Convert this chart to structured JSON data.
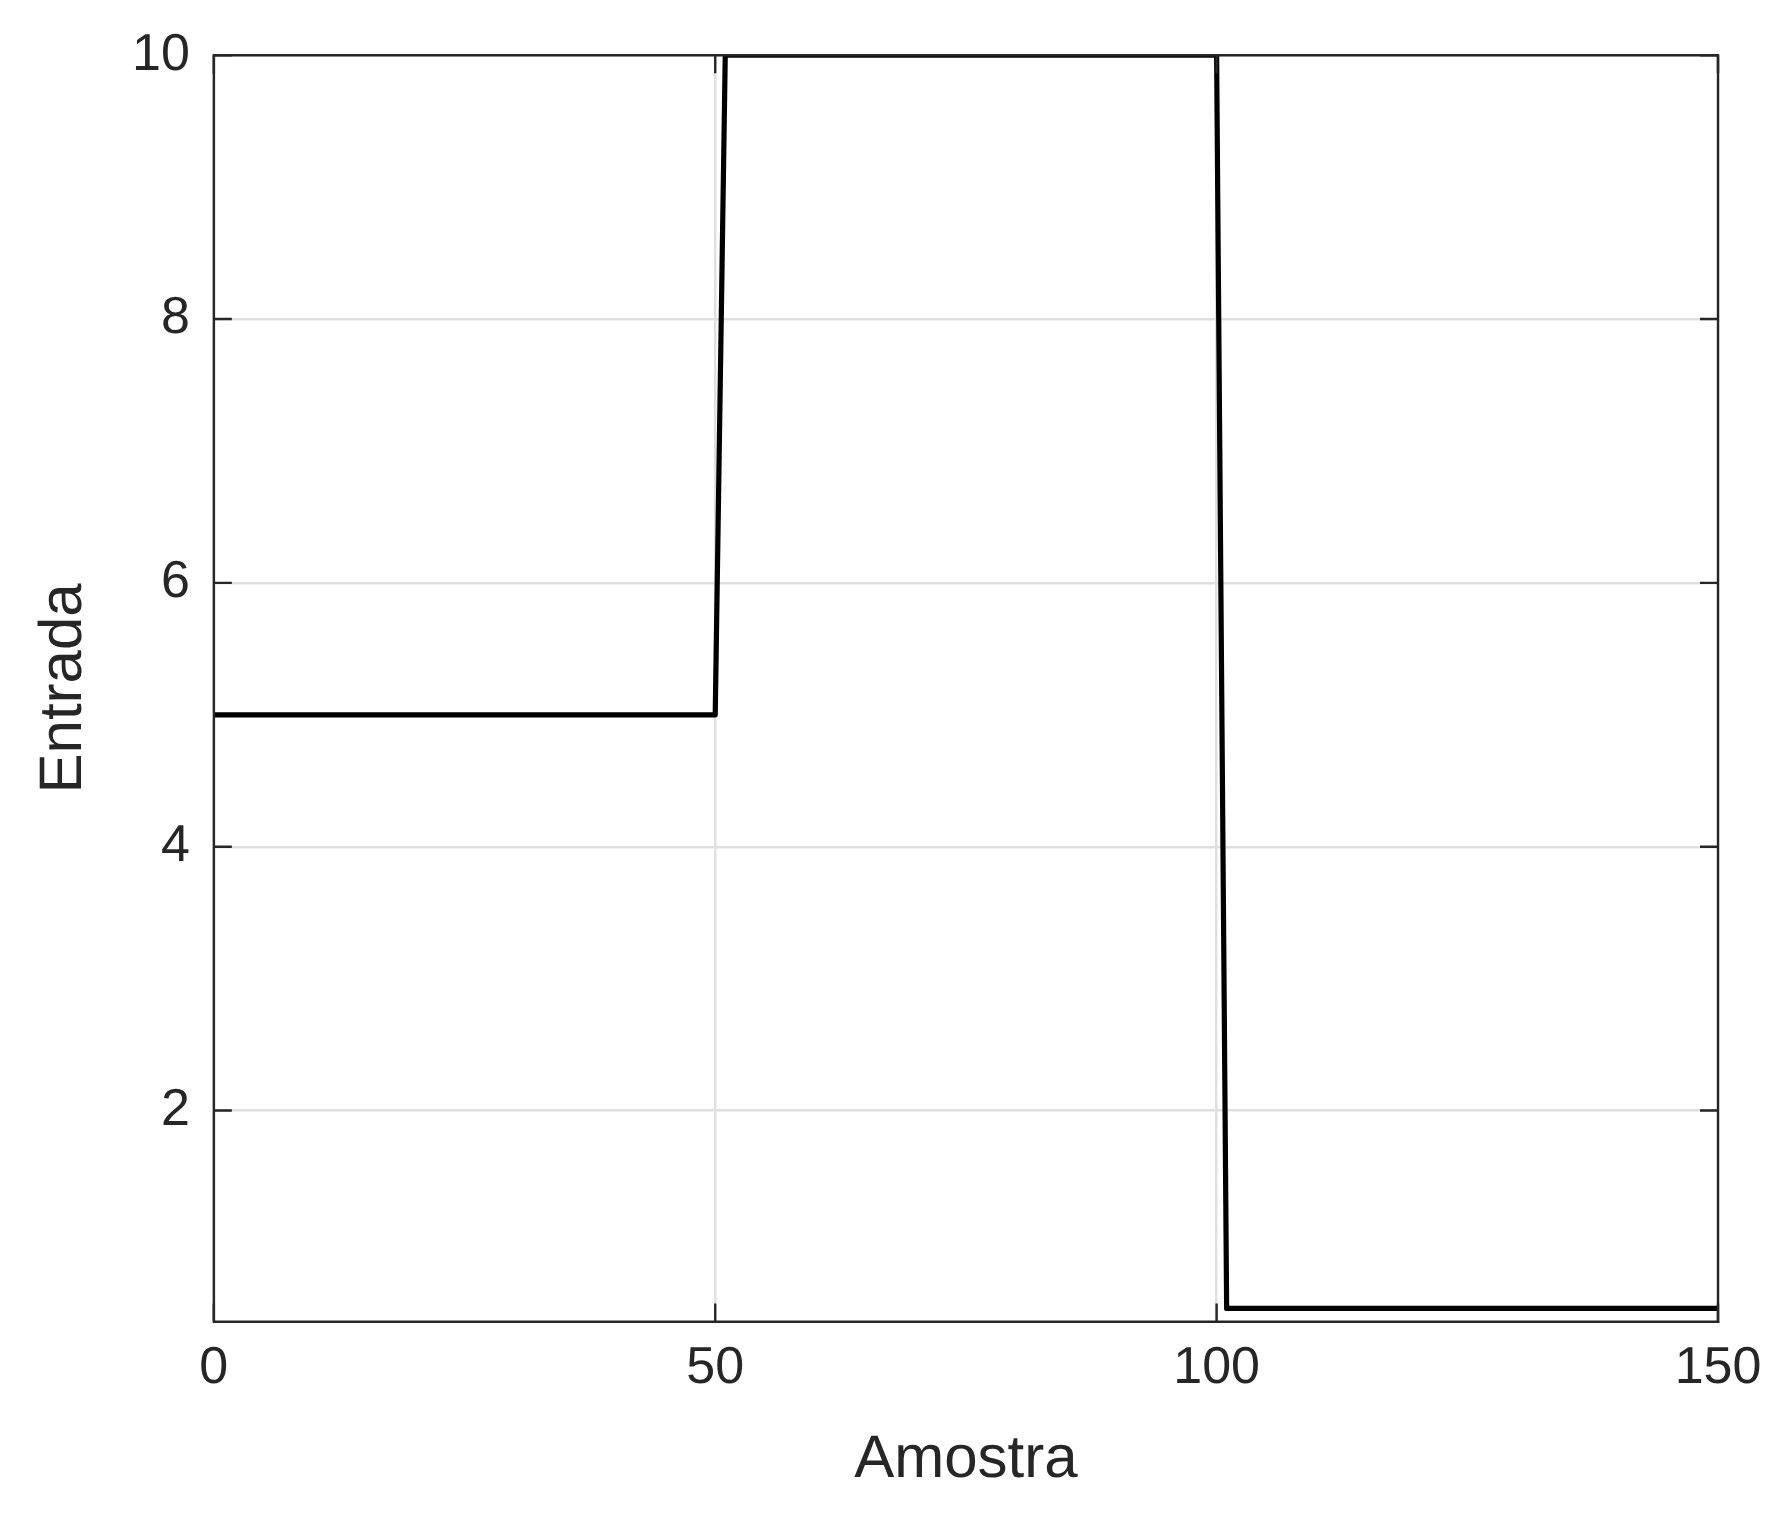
{
  "chart_data": {
    "type": "line",
    "xlabel": "Amostra",
    "ylabel": "Entrada",
    "x": [
      0,
      50,
      51,
      100,
      101,
      150
    ],
    "series": [
      {
        "color": "#000000",
        "values": [
          5,
          5,
          10,
          10,
          0.5,
          0.5
        ]
      }
    ],
    "xlim": [
      0,
      150
    ],
    "xticks": [
      0,
      50,
      100,
      150
    ],
    "ylim": [
      0.4,
      10
    ],
    "yticks": [
      2,
      4,
      6,
      8,
      10
    ],
    "grid": true,
    "legend": false,
    "marker": "none",
    "line_style": "solid"
  }
}
